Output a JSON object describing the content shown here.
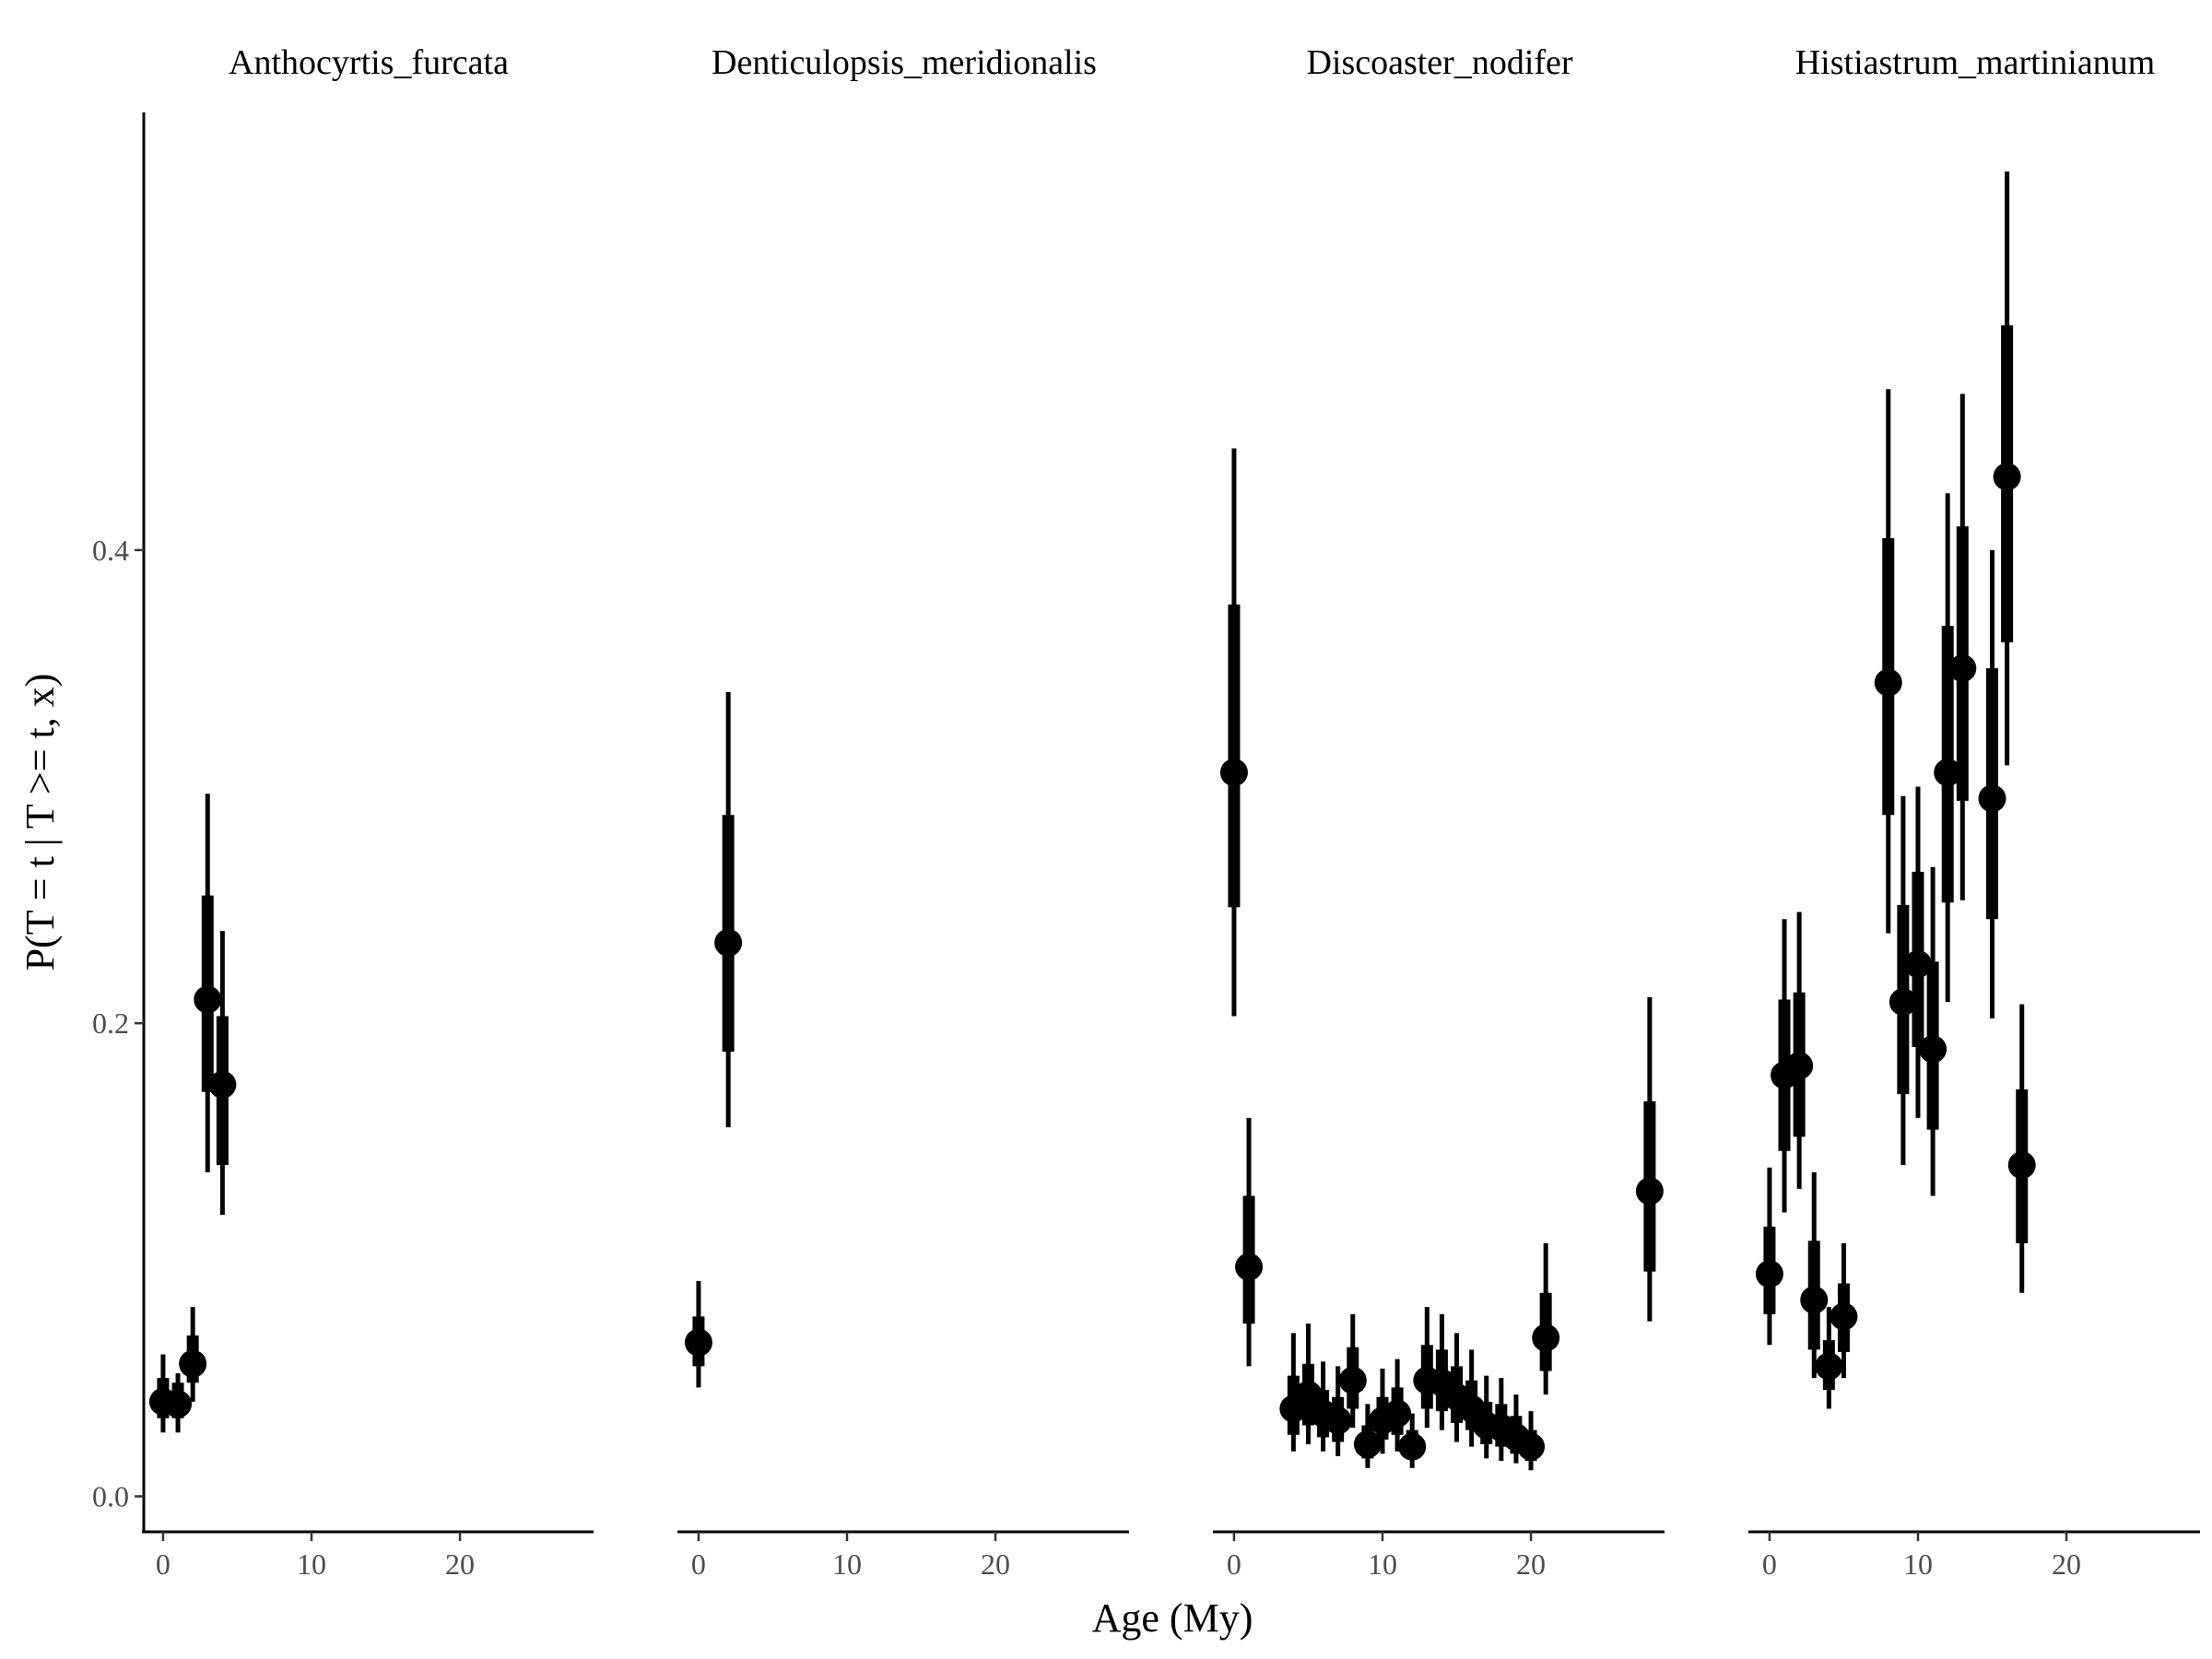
{
  "chart_data": {
    "type": "scatter",
    "xlabel": "Age (My)",
    "ylabel": "P(T = t | T >= t, x)",
    "xlim": [
      -1.3,
      29
    ],
    "ylim": [
      -0.015,
      0.585
    ],
    "x_ticks": [
      0,
      10,
      20
    ],
    "x_tick_labels": [
      "0",
      "10",
      "20"
    ],
    "y_ticks": [
      0.0,
      0.2,
      0.4
    ],
    "y_tick_labels": [
      "0.0",
      "0.2",
      "0.4"
    ],
    "grid": false,
    "legend": "none",
    "point_color": "#000000",
    "facets": [
      {
        "title": "Anthocyrtis_furcata",
        "points": [
          {
            "x": 0,
            "y": 0.04,
            "lo": 0.027,
            "hi": 0.06,
            "lo_inner": 0.033,
            "hi_inner": 0.05
          },
          {
            "x": 1,
            "y": 0.039,
            "lo": 0.027,
            "hi": 0.052,
            "lo_inner": 0.033,
            "hi_inner": 0.048
          },
          {
            "x": 2,
            "y": 0.056,
            "lo": 0.04,
            "hi": 0.08,
            "lo_inner": 0.048,
            "hi_inner": 0.068
          },
          {
            "x": 3,
            "y": 0.21,
            "lo": 0.137,
            "hi": 0.297,
            "lo_inner": 0.171,
            "hi_inner": 0.254
          },
          {
            "x": 4,
            "y": 0.174,
            "lo": 0.119,
            "hi": 0.239,
            "lo_inner": 0.14,
            "hi_inner": 0.203
          }
        ]
      },
      {
        "title": "Denticulopsis_meridionalis",
        "points": [
          {
            "x": 0,
            "y": 0.065,
            "lo": 0.046,
            "hi": 0.091,
            "lo_inner": 0.055,
            "hi_inner": 0.076
          },
          {
            "x": 2,
            "y": 0.234,
            "lo": 0.156,
            "hi": 0.34,
            "lo_inner": 0.188,
            "hi_inner": 0.288
          }
        ]
      },
      {
        "title": "Discoaster_nodifer",
        "points": [
          {
            "x": 0,
            "y": 0.306,
            "lo": 0.203,
            "hi": 0.443,
            "lo_inner": 0.249,
            "hi_inner": 0.377
          },
          {
            "x": 1,
            "y": 0.097,
            "lo": 0.055,
            "hi": 0.16,
            "lo_inner": 0.073,
            "hi_inner": 0.127
          },
          {
            "x": 4,
            "y": 0.037,
            "lo": 0.019,
            "hi": 0.069,
            "lo_inner": 0.026,
            "hi_inner": 0.051
          },
          {
            "x": 5,
            "y": 0.043,
            "lo": 0.022,
            "hi": 0.073,
            "lo_inner": 0.03,
            "hi_inner": 0.056
          },
          {
            "x": 6,
            "y": 0.035,
            "lo": 0.019,
            "hi": 0.057,
            "lo_inner": 0.025,
            "hi_inner": 0.045
          },
          {
            "x": 7,
            "y": 0.032,
            "lo": 0.017,
            "hi": 0.055,
            "lo_inner": 0.023,
            "hi_inner": 0.042
          },
          {
            "x": 8,
            "y": 0.049,
            "lo": 0.029,
            "hi": 0.077,
            "lo_inner": 0.037,
            "hi_inner": 0.063
          },
          {
            "x": 9,
            "y": 0.022,
            "lo": 0.012,
            "hi": 0.039,
            "lo_inner": 0.016,
            "hi_inner": 0.03
          },
          {
            "x": 10,
            "y": 0.032,
            "lo": 0.018,
            "hi": 0.054,
            "lo_inner": 0.024,
            "hi_inner": 0.042
          },
          {
            "x": 11,
            "y": 0.035,
            "lo": 0.019,
            "hi": 0.058,
            "lo_inner": 0.026,
            "hi_inner": 0.046
          },
          {
            "x": 12,
            "y": 0.021,
            "lo": 0.012,
            "hi": 0.035,
            "lo_inner": 0.016,
            "hi_inner": 0.028
          },
          {
            "x": 13,
            "y": 0.049,
            "lo": 0.029,
            "hi": 0.08,
            "lo_inner": 0.037,
            "hi_inner": 0.064
          },
          {
            "x": 14,
            "y": 0.048,
            "lo": 0.028,
            "hi": 0.077,
            "lo_inner": 0.036,
            "hi_inner": 0.062
          },
          {
            "x": 15,
            "y": 0.042,
            "lo": 0.023,
            "hi": 0.069,
            "lo_inner": 0.031,
            "hi_inner": 0.055
          },
          {
            "x": 16,
            "y": 0.037,
            "lo": 0.021,
            "hi": 0.062,
            "lo_inner": 0.028,
            "hi_inner": 0.049
          },
          {
            "x": 17,
            "y": 0.03,
            "lo": 0.016,
            "hi": 0.051,
            "lo_inner": 0.022,
            "hi_inner": 0.04
          },
          {
            "x": 18,
            "y": 0.029,
            "lo": 0.015,
            "hi": 0.05,
            "lo_inner": 0.021,
            "hi_inner": 0.039
          },
          {
            "x": 19,
            "y": 0.025,
            "lo": 0.014,
            "hi": 0.043,
            "lo_inner": 0.018,
            "hi_inner": 0.034
          },
          {
            "x": 20,
            "y": 0.021,
            "lo": 0.011,
            "hi": 0.036,
            "lo_inner": 0.015,
            "hi_inner": 0.028
          },
          {
            "x": 21,
            "y": 0.067,
            "lo": 0.043,
            "hi": 0.107,
            "lo_inner": 0.053,
            "hi_inner": 0.086
          },
          {
            "x": 28,
            "y": 0.129,
            "lo": 0.074,
            "hi": 0.211,
            "lo_inner": 0.095,
            "hi_inner": 0.167
          }
        ]
      },
      {
        "title": "Histiastrum_martinianum",
        "points": [
          {
            "x": 0,
            "y": 0.094,
            "lo": 0.064,
            "hi": 0.139,
            "lo_inner": 0.077,
            "hi_inner": 0.114
          },
          {
            "x": 1,
            "y": 0.178,
            "lo": 0.12,
            "hi": 0.244,
            "lo_inner": 0.146,
            "hi_inner": 0.21
          },
          {
            "x": 2,
            "y": 0.182,
            "lo": 0.13,
            "hi": 0.247,
            "lo_inner": 0.152,
            "hi_inner": 0.213
          },
          {
            "x": 3,
            "y": 0.083,
            "lo": 0.05,
            "hi": 0.137,
            "lo_inner": 0.062,
            "hi_inner": 0.108
          },
          {
            "x": 4,
            "y": 0.055,
            "lo": 0.037,
            "hi": 0.08,
            "lo_inner": 0.045,
            "hi_inner": 0.066
          },
          {
            "x": 5,
            "y": 0.076,
            "lo": 0.05,
            "hi": 0.107,
            "lo_inner": 0.061,
            "hi_inner": 0.09
          },
          {
            "x": 8,
            "y": 0.344,
            "lo": 0.238,
            "hi": 0.468,
            "lo_inner": 0.288,
            "hi_inner": 0.405
          },
          {
            "x": 9,
            "y": 0.209,
            "lo": 0.14,
            "hi": 0.296,
            "lo_inner": 0.17,
            "hi_inner": 0.25
          },
          {
            "x": 10,
            "y": 0.225,
            "lo": 0.16,
            "hi": 0.3,
            "lo_inner": 0.19,
            "hi_inner": 0.264
          },
          {
            "x": 11,
            "y": 0.189,
            "lo": 0.127,
            "hi": 0.266,
            "lo_inner": 0.155,
            "hi_inner": 0.226
          },
          {
            "x": 12,
            "y": 0.306,
            "lo": 0.209,
            "hi": 0.424,
            "lo_inner": 0.251,
            "hi_inner": 0.368
          },
          {
            "x": 13,
            "y": 0.35,
            "lo": 0.252,
            "hi": 0.466,
            "lo_inner": 0.294,
            "hi_inner": 0.41
          },
          {
            "x": 15,
            "y": 0.295,
            "lo": 0.202,
            "hi": 0.4,
            "lo_inner": 0.244,
            "hi_inner": 0.35
          },
          {
            "x": 16,
            "y": 0.431,
            "lo": 0.309,
            "hi": 0.56,
            "lo_inner": 0.361,
            "hi_inner": 0.495
          },
          {
            "x": 17,
            "y": 0.14,
            "lo": 0.086,
            "hi": 0.208,
            "lo_inner": 0.107,
            "hi_inner": 0.172
          }
        ]
      }
    ]
  }
}
